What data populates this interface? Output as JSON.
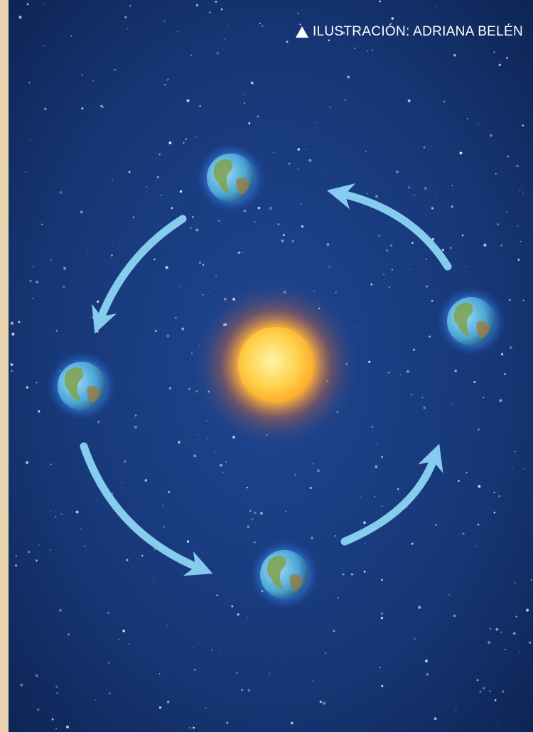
{
  "credit": "ILUSTRACIÓN: ADRIANA BELÉN"
}
